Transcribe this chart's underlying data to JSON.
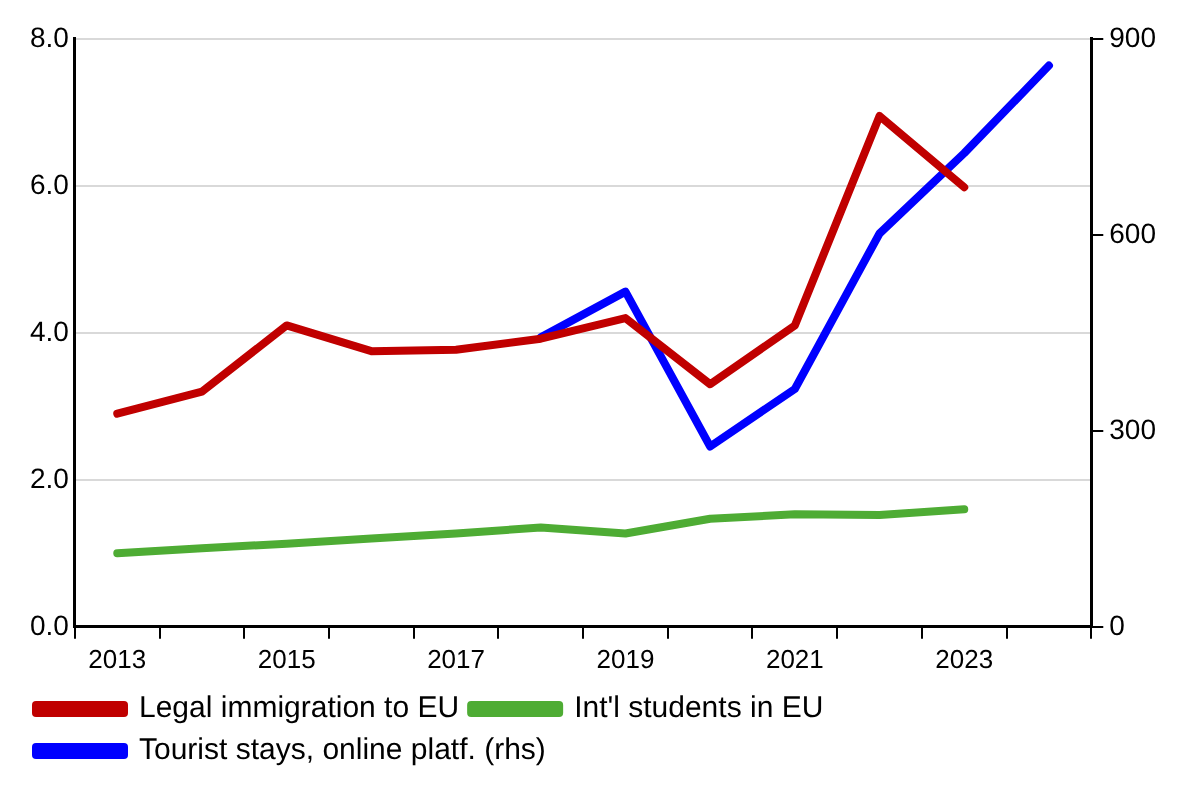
{
  "chart_data": {
    "type": "line",
    "categories": [
      "2013",
      null,
      "2015",
      null,
      "2017",
      null,
      "2019",
      null,
      "2021",
      null,
      "2023",
      null
    ],
    "series": [
      {
        "name": "Legal immigration to EU",
        "color": "#c00000",
        "values": [
          2.9,
          3.2,
          4.1,
          3.75,
          3.77,
          3.92,
          4.2,
          3.3,
          4.1,
          6.95,
          5.98,
          null
        ]
      },
      {
        "name": "Int'l students in EU",
        "color": "#4eac34",
        "values": [
          1.0,
          1.07,
          1.13,
          1.2,
          1.27,
          1.35,
          1.27,
          1.47,
          1.53,
          1.52,
          1.6,
          null
        ]
      },
      {
        "name": "Tourist stays, online platf. (rhs)",
        "color": "#0000ff",
        "axis": "y2",
        "values": [
          null,
          null,
          null,
          null,
          null,
          443,
          513,
          276,
          364,
          602,
          725,
          859
        ]
      }
    ],
    "ylim": [
      0,
      8
    ],
    "yticks": [
      {
        "value": 0,
        "label": "0.0"
      },
      {
        "value": 2,
        "label": "2.0"
      },
      {
        "value": 4,
        "label": "4.0"
      },
      {
        "value": 6,
        "label": "6.0"
      },
      {
        "value": 8,
        "label": "8.0"
      }
    ],
    "y2lim": [
      0,
      900
    ],
    "y2ticks": [
      0,
      300,
      600,
      900
    ],
    "grid": "y",
    "legend": "bottom",
    "marker": "none",
    "line_style": "solid"
  }
}
